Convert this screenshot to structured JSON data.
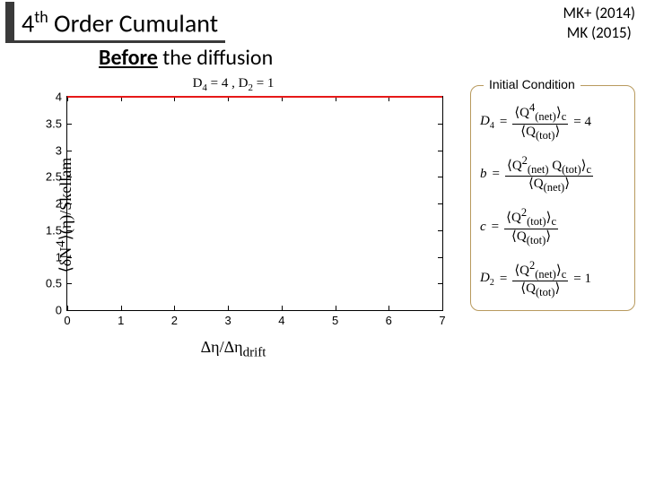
{
  "title": {
    "pre": "4",
    "sup": "th",
    "rest": " Order Cumulant"
  },
  "refs": {
    "line1": "MK+ (2014)",
    "line2": "MK (2015)"
  },
  "subhead": {
    "bold": "Before",
    "rest": " the diffusion"
  },
  "chart": {
    "type": "line",
    "title_html": "D<sub>4</sub> = 4 , D<sub>2</sub> = 1",
    "ylabel_html": "⟨δN<sup>4</sup>⟩(η)/Skellam",
    "xlabel_html": "Δη/Δη<sub>drift</sub>",
    "xlim": [
      0,
      7
    ],
    "ylim": [
      0,
      4
    ],
    "xticks": [
      0,
      1,
      2,
      3,
      4,
      5,
      6,
      7
    ],
    "yticks": [
      0,
      0.5,
      1,
      1.5,
      2,
      2.5,
      3,
      3.5,
      4
    ],
    "series": [
      {
        "y": 4,
        "color": "#e61919",
        "width": 2
      }
    ],
    "background_color": "#ffffff",
    "axis_color": "#000000",
    "tick_fontsize": 13,
    "label_fontsize": 18,
    "title_fontsize": 15
  },
  "initial_condition": {
    "legend": "Initial Condition",
    "border_color": "#b89a5e",
    "rows": [
      {
        "lhs_html": "D<sub>4</sub>",
        "num_html": "⟨Q<sup>4</sup><sub>(net)</sub>⟩<sub>c</sub>",
        "den_html": "⟨Q<sub>(tot)</sub>⟩",
        "tail": " = 4"
      },
      {
        "lhs_html": "b",
        "num_html": "⟨Q<sup>2</sup><sub>(net)</sub> Q<sub>(tot)</sub>⟩<sub>c</sub>",
        "den_html": "⟨Q<sub>(net)</sub>⟩",
        "tail": ""
      },
      {
        "lhs_html": "c",
        "num_html": "⟨Q<sup>2</sup><sub>(tot)</sub>⟩<sub>c</sub>",
        "den_html": "⟨Q<sub>(tot)</sub>⟩",
        "tail": ""
      },
      {
        "lhs_html": "D<sub>2</sub>",
        "num_html": "⟨Q<sup>2</sup><sub>(net)</sub>⟩<sub>c</sub>",
        "den_html": "⟨Q<sub>(tot)</sub>⟩",
        "tail": " = 1"
      }
    ]
  }
}
